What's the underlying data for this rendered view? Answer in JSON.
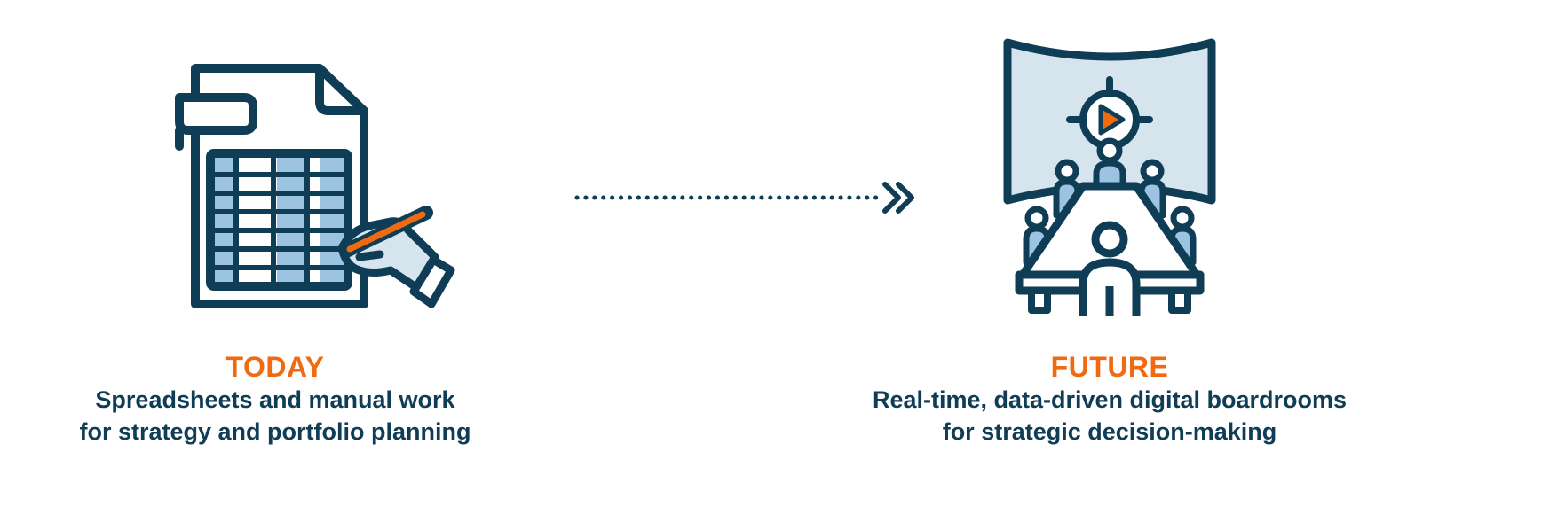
{
  "colors": {
    "navy": "#0f3d56",
    "orange": "#f06a12",
    "light_blue": "#9dc3e3",
    "pale_blue": "#d6e4ee"
  },
  "today": {
    "title": "TODAY",
    "line1": "Spreadsheets  and manual work",
    "line2": "for strategy and portfolio planning",
    "icon": "spreadsheet-with-hand-pencil-icon"
  },
  "future": {
    "title": "FUTURE",
    "line1": "Real-time, data-driven digital boardrooms",
    "line2": "for strategic decision-making",
    "icon": "digital-boardroom-icon"
  },
  "connector": {
    "icon": "dotted-double-chevron-arrow-icon"
  }
}
